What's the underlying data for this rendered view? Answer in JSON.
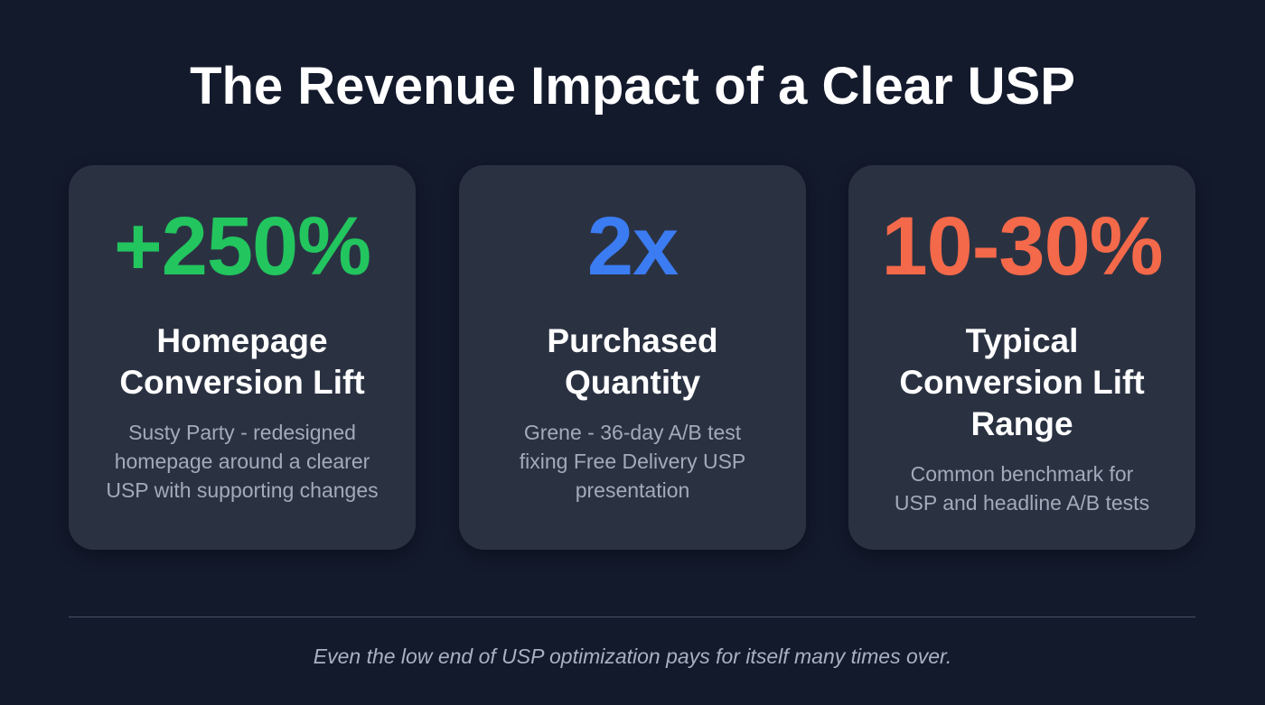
{
  "title": "The Revenue Impact of a Clear USP",
  "cards": [
    {
      "stat": "+250%",
      "color": "#22c55e",
      "label_lines": [
        "Homepage",
        "Conversion Lift"
      ],
      "desc_lines": [
        "Susty Party - redesigned",
        "homepage around a clearer",
        "USP with supporting changes"
      ]
    },
    {
      "stat": "2x",
      "color": "#3b7cf2",
      "label_lines": [
        "Purchased",
        "Quantity"
      ],
      "desc_lines": [
        "Grene - 36-day A/B test",
        "fixing Free Delivery USP",
        "presentation"
      ]
    },
    {
      "stat": "10-30%",
      "color": "#f4694a",
      "label_lines": [
        "Typical",
        "Conversion Lift",
        "Range"
      ],
      "desc_lines": [
        "Common benchmark for",
        "USP and headline A/B tests"
      ]
    }
  ],
  "footer": "Even the low end of USP optimization pays for itself many times over."
}
